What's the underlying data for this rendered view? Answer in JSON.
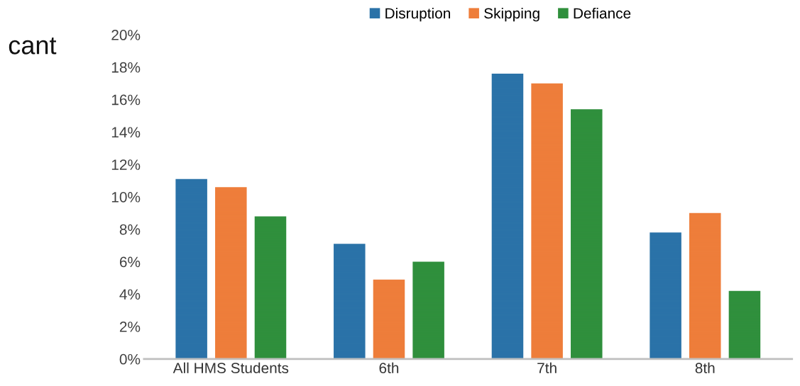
{
  "chart_data": {
    "type": "bar",
    "categories": [
      "All HMS Students",
      "6th",
      "7th",
      "8th"
    ],
    "series": [
      {
        "name": "Disruption",
        "color": "#2a72a8",
        "values": [
          11.1,
          7.1,
          17.6,
          7.8
        ]
      },
      {
        "name": "Skipping",
        "color": "#ee7d3a",
        "values": [
          10.6,
          4.9,
          17.0,
          9.0
        ]
      },
      {
        "name": "Defiance",
        "color": "#2f8f3c",
        "values": [
          8.8,
          6.0,
          15.4,
          4.2
        ]
      }
    ],
    "ylim": [
      0,
      20
    ],
    "yticks": [
      {
        "value": 0,
        "label": "0%"
      },
      {
        "value": 2,
        "label": "2%"
      },
      {
        "value": 4,
        "label": "4%"
      },
      {
        "value": 6,
        "label": "6%"
      },
      {
        "value": 8,
        "label": "8%"
      },
      {
        "value": 10,
        "label": "10%"
      },
      {
        "value": 12,
        "label": "12%"
      },
      {
        "value": 14,
        "label": "14%"
      },
      {
        "value": 16,
        "label": "16%"
      },
      {
        "value": 18,
        "label": "18%"
      },
      {
        "value": 20,
        "label": "20%"
      }
    ],
    "annotations": [
      "cant"
    ],
    "legend": "top",
    "grid": false
  }
}
